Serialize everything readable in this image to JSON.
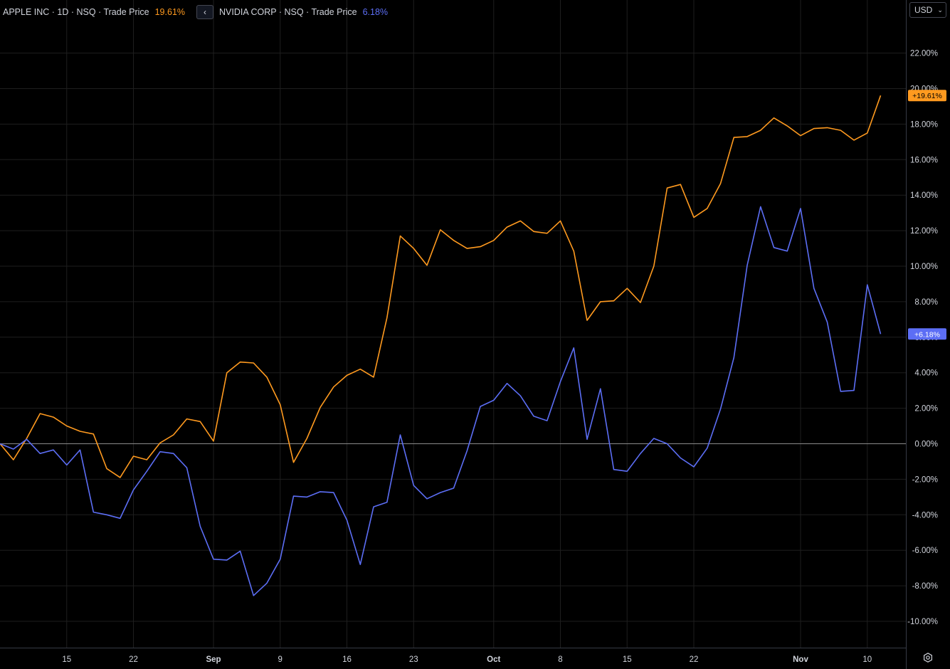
{
  "legend": {
    "series1_label": "APPLE INC · 1D · NSQ · Trade Price",
    "series1_value": "19.61%",
    "series2_label": "NVIDIA CORP · NSQ · Trade Price",
    "series2_value": "6.18%",
    "collapse_glyph": "‹"
  },
  "currency": {
    "label": "USD",
    "chevron": "⌄"
  },
  "colors": {
    "apple": "#ff9a1f",
    "nvidia": "#5c6ef5",
    "background": "#000000",
    "grid": "#1e1e1e",
    "text": "#d1d4dc"
  },
  "chart_data": {
    "type": "line",
    "x_tick_labels": [
      "15",
      "22",
      "Sep",
      "9",
      "16",
      "23",
      "Oct",
      "8",
      "15",
      "22",
      "Nov",
      "10"
    ],
    "x_tick_index": [
      5,
      10,
      16,
      21,
      26,
      31,
      37,
      42,
      47,
      52,
      60,
      65
    ],
    "y_tick_labels": [
      "22.00%",
      "20.00%",
      "18.00%",
      "16.00%",
      "14.00%",
      "12.00%",
      "10.00%",
      "8.00%",
      "6.00%",
      "4.00%",
      "2.00%",
      "0.00%",
      "-2.00%",
      "-4.00%",
      "-6.00%",
      "-8.00%",
      "-10.00%"
    ],
    "ylim": [
      -11,
      24
    ],
    "last_labels": [
      "+19.61%",
      "+6.18%"
    ],
    "series": [
      {
        "name": "APPLE INC",
        "values": [
          0,
          -0.9,
          0.3,
          1.7,
          1.5,
          1.0,
          0.7,
          0.55,
          -1.4,
          -1.9,
          -0.7,
          -0.9,
          0.05,
          0.5,
          1.4,
          1.25,
          0.15,
          4.0,
          4.6,
          4.55,
          3.75,
          2.2,
          -1.05,
          0.3,
          2.05,
          3.2,
          3.85,
          4.2,
          3.75,
          7.1,
          11.7,
          11.0,
          10.05,
          12.05,
          11.45,
          11.0,
          11.1,
          11.45,
          12.2,
          12.55,
          11.95,
          11.85,
          12.55,
          10.85,
          6.95,
          8.0,
          8.05,
          8.75,
          7.95,
          10.0,
          14.4,
          14.6,
          12.75,
          13.25,
          14.65,
          17.25,
          17.3,
          17.65,
          18.35,
          17.9,
          17.35,
          17.75,
          17.8,
          17.65,
          17.1,
          17.5,
          19.61
        ],
        "color": "#ff9a1f"
      },
      {
        "name": "NVIDIA CORP",
        "values": [
          0,
          -0.3,
          0.25,
          -0.55,
          -0.35,
          -1.2,
          -0.35,
          -3.85,
          -4.0,
          -4.2,
          -2.6,
          -1.55,
          -0.45,
          -0.55,
          -1.35,
          -4.65,
          -6.5,
          -6.55,
          -6.05,
          -8.55,
          -7.85,
          -6.5,
          -2.95,
          -3.0,
          -2.7,
          -2.75,
          -4.3,
          -6.8,
          -3.55,
          -3.3,
          0.5,
          -2.35,
          -3.1,
          -2.75,
          -2.5,
          -0.4,
          2.1,
          2.45,
          3.4,
          2.7,
          1.55,
          1.3,
          3.5,
          5.4,
          0.25,
          3.1,
          -1.45,
          -1.55,
          -0.55,
          0.3,
          0.0,
          -0.8,
          -1.3,
          -0.25,
          1.95,
          4.85,
          10.05,
          13.35,
          11.05,
          10.85,
          13.25,
          8.75,
          6.85,
          2.95,
          3.0,
          8.95,
          6.18
        ],
        "color": "#5c6ef5"
      }
    ]
  }
}
